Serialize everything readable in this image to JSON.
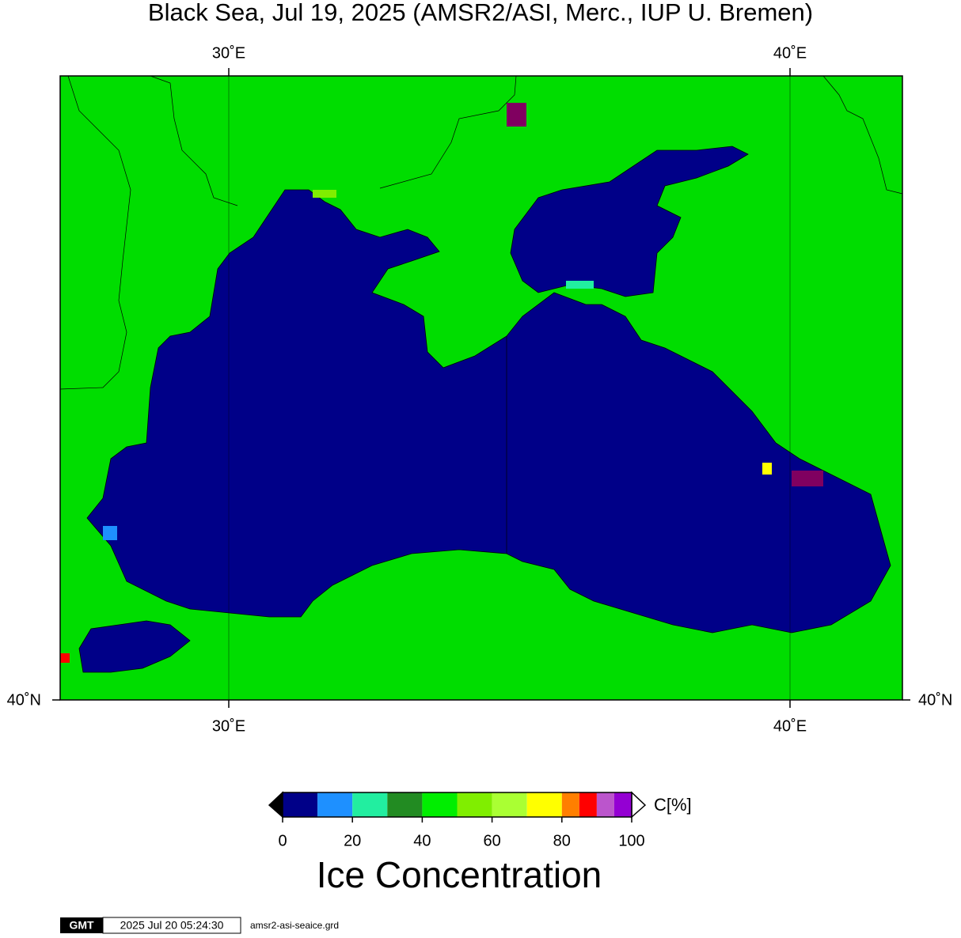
{
  "title": "Black Sea, Jul 19, 2025 (AMSR2/ASI, Merc., IUP U. Bremen)",
  "map": {
    "lon_labels": [
      "30˚E",
      "40˚E"
    ],
    "lat_label": "40˚N"
  },
  "colorbar": {
    "unit": "C[%]",
    "label": "Ice Concentration",
    "bins": [
      0,
      10,
      20,
      30,
      40,
      50,
      60,
      70,
      80,
      85,
      90,
      95,
      100
    ],
    "colors": [
      "#000088",
      "#1e90ff",
      "#22eea0",
      "#228b22",
      "#00ee00",
      "#80ee00",
      "#aaff33",
      "#ffff00",
      "#ff7f00",
      "#ff0000",
      "#bb55cc",
      "#9400d3"
    ],
    "ticks": [
      0,
      20,
      40,
      60,
      80,
      100
    ]
  },
  "footer": {
    "logo": "GMT",
    "timestamp": "2025 Jul 20 05:24:30",
    "file": "amsr2-asi-seaice.grd"
  }
}
